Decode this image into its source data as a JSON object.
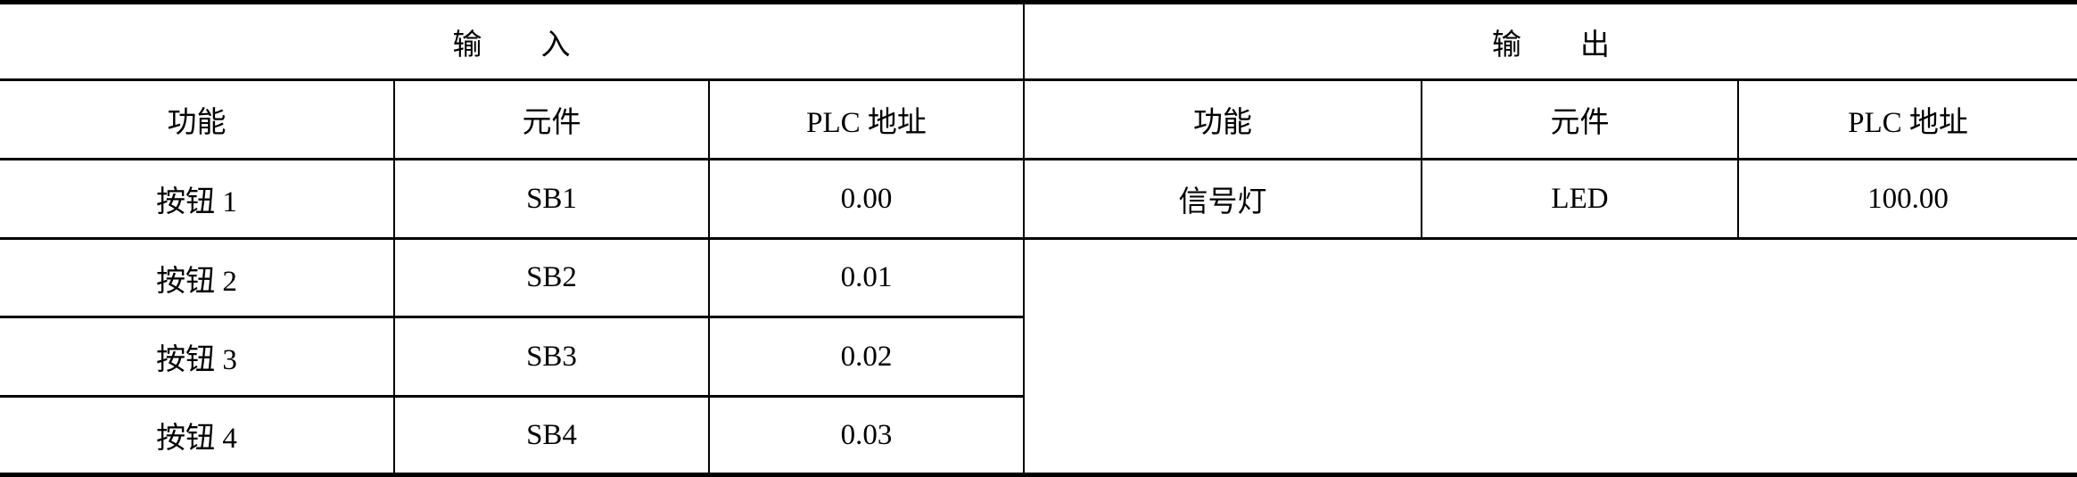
{
  "input": {
    "title": "输　　入",
    "headers": [
      "功能",
      "元件",
      "PLC 地址"
    ],
    "rows": [
      [
        "按钮 1",
        "SB1",
        "0.00"
      ],
      [
        "按钮 2",
        "SB2",
        "0.01"
      ],
      [
        "按钮 3",
        "SB3",
        "0.02"
      ],
      [
        "按钮 4",
        "SB4",
        "0.03"
      ]
    ]
  },
  "output": {
    "title": "输　　出",
    "headers": [
      "功能",
      "元件",
      "PLC 地址"
    ],
    "rows": [
      [
        "信号灯",
        "LED",
        "100.00"
      ]
    ]
  }
}
